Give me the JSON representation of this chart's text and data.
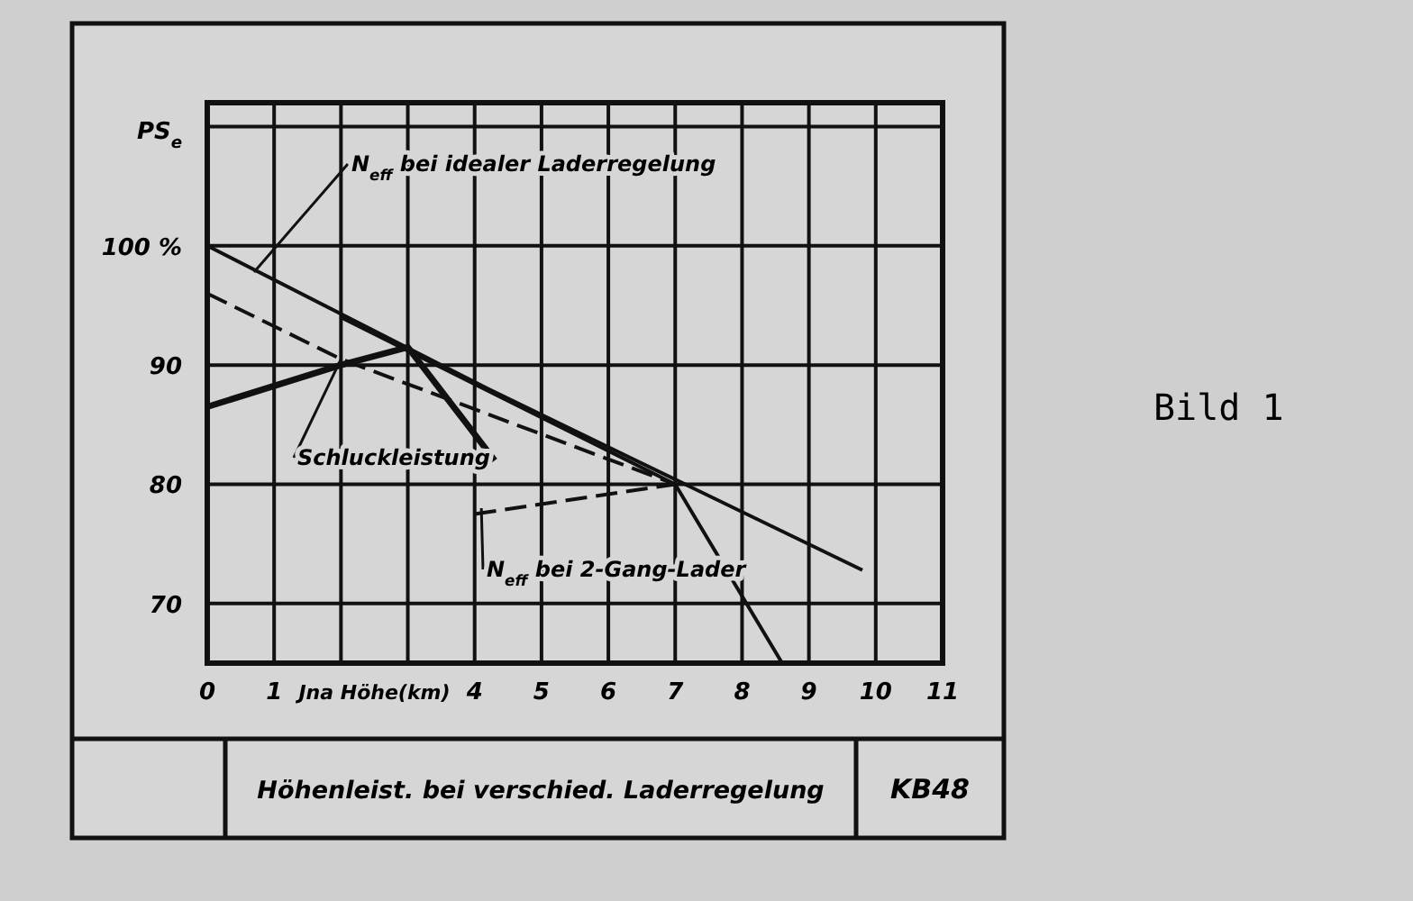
{
  "chart_data": {
    "type": "line",
    "title": "Höhenleist. bei verschied. Laderregelung",
    "subtitle": "Bild 1",
    "xlabel": "Jna Höhe(km)",
    "ylabel": "PS$_{e}$",
    "xlim": [
      0,
      11
    ],
    "xticks": [
      0,
      1,
      {
        "value": 2,
        "label": null
      },
      {
        "value": 3,
        "label": null
      },
      4,
      5,
      6,
      7,
      8,
      9,
      10,
      11
    ],
    "ylim": [
      65,
      112
    ],
    "yticks": [
      70,
      80,
      90,
      {
        "value": 100,
        "label": "100 %"
      },
      {
        "value": 110,
        "label": null
      }
    ],
    "grid": true,
    "marker": "none",
    "series": [
      {
        "color": "#111111",
        "line_style": "solid",
        "x": [
          0,
          4.2,
          9.8
        ],
        "values": [
          100,
          88,
          72.8
        ]
      },
      {
        "color": "#111111",
        "line_style": "solid",
        "x": [
          2,
          7,
          8.6
        ],
        "values": [
          94,
          80,
          65
        ]
      },
      {
        "color": "#111111",
        "line_style": "dashed",
        "x": [
          0,
          2,
          7
        ],
        "values": [
          96,
          90.5,
          80
        ]
      },
      {
        "color": "#111111",
        "line_style": "solid",
        "x": [
          0,
          2,
          3,
          4.3
        ],
        "values": [
          86.5,
          90,
          91.5,
          82
        ]
      },
      {
        "color": "#111111",
        "line_style": "dashed",
        "x": [
          4,
          7
        ],
        "values": [
          77.5,
          80
        ]
      }
    ],
    "annotations": [
      {
        "text": "N$_{eff}$ bei idealer Laderregelung",
        "x": 0.7,
        "y": 97.8
      },
      {
        "text": "Schluckleistung",
        "x": 2,
        "y": 90.5
      },
      {
        "text": "N$_{eff}$ bei 2-Gang-Lader",
        "x": 4.1,
        "y": 78
      },
      "KB48"
    ]
  }
}
